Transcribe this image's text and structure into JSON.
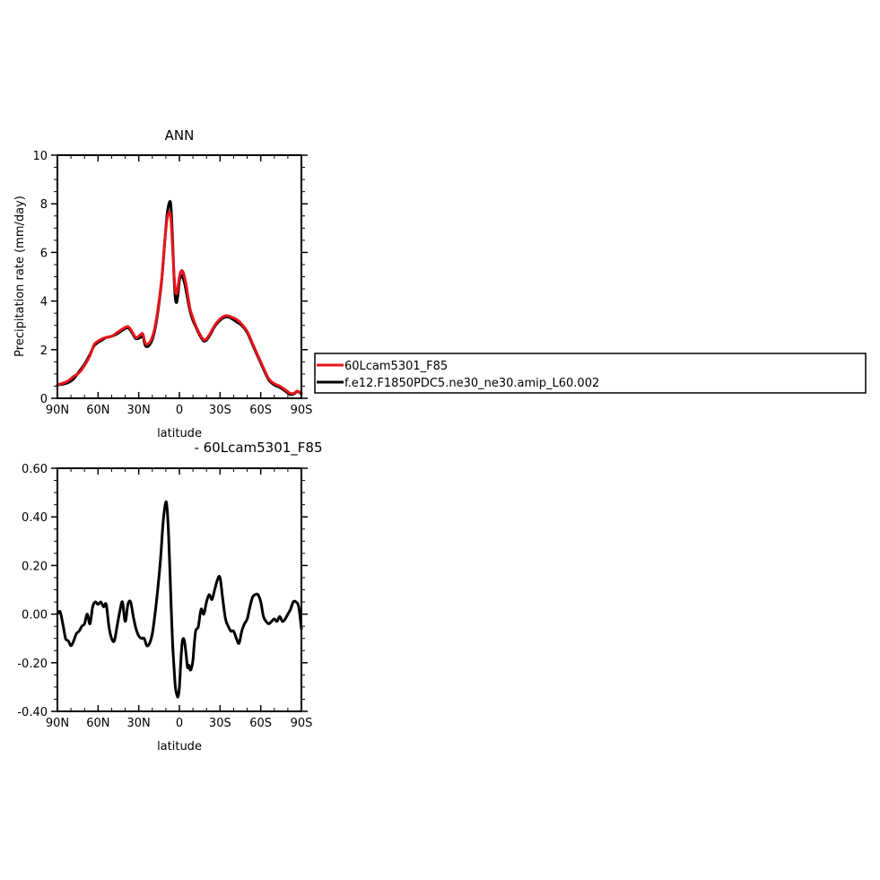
{
  "colors": {
    "model": "#e8141b",
    "control": "#000000",
    "axis": "#000000"
  },
  "legend": {
    "items": [
      {
        "label": "60Lcam5301_F85",
        "color": "#e8141b"
      },
      {
        "label": "f.e12.F1850PDC5.ne30_ne30.amip_L60.002",
        "color": "#000000"
      }
    ]
  },
  "chart_data": [
    {
      "type": "line",
      "title": "ANN",
      "xlabel": "latitude",
      "ylabel": "Precipitation rate (mm/day)",
      "xlim": [
        90,
        -90
      ],
      "ylim": [
        0,
        10
      ],
      "xticks": [
        90,
        60,
        30,
        0,
        -30,
        -60,
        -90
      ],
      "xtick_labels": [
        "90N",
        "60N",
        "30N",
        "0",
        "30S",
        "60S",
        "90S"
      ],
      "yticks": [
        0,
        2,
        4,
        6,
        8,
        10
      ],
      "ytick_labels": [
        "0",
        "2",
        "4",
        "6",
        "8",
        "10"
      ],
      "series": [
        {
          "name": "f.e12.F1850PDC5.ne30_ne30.amip_L60.002",
          "color": "#000000",
          "x": [
            90,
            86,
            82,
            78,
            74,
            70,
            66,
            63,
            60,
            57,
            54,
            50,
            46,
            42,
            38,
            35,
            32,
            29,
            27,
            25,
            22,
            19,
            16,
            13,
            11,
            9,
            7,
            6,
            5,
            4,
            3,
            2,
            1,
            0,
            -1,
            -2,
            -3,
            -4,
            -5,
            -6,
            -7,
            -8,
            -10,
            -12,
            -14,
            -16,
            -18,
            -20,
            -22,
            -24,
            -26,
            -29,
            -32,
            -35,
            -38,
            -42,
            -46,
            -50,
            -54,
            -58,
            -62,
            -66,
            -70,
            -74,
            -78,
            -82,
            -85,
            -87,
            -90
          ],
          "y": [
            0.55,
            0.58,
            0.65,
            0.8,
            1.1,
            1.4,
            1.8,
            2.15,
            2.3,
            2.4,
            2.5,
            2.55,
            2.65,
            2.8,
            2.9,
            2.7,
            2.45,
            2.5,
            2.55,
            2.15,
            2.2,
            2.6,
            3.5,
            4.9,
            6.3,
            7.6,
            8.1,
            7.7,
            6.5,
            5.0,
            4.1,
            3.95,
            4.3,
            4.85,
            5.0,
            5.05,
            4.9,
            4.7,
            4.4,
            4.1,
            3.8,
            3.55,
            3.2,
            2.95,
            2.7,
            2.5,
            2.35,
            2.4,
            2.55,
            2.75,
            2.95,
            3.15,
            3.3,
            3.35,
            3.3,
            3.15,
            3.0,
            2.7,
            2.2,
            1.7,
            1.2,
            0.75,
            0.55,
            0.45,
            0.3,
            0.15,
            0.2,
            0.28,
            0.18
          ]
        },
        {
          "name": "60Lcam5301_F85",
          "color": "#e8141b",
          "x": [
            90,
            86,
            82,
            78,
            74,
            70,
            66,
            63,
            60,
            57,
            54,
            50,
            46,
            42,
            38,
            35,
            32,
            29,
            27,
            25,
            22,
            19,
            16,
            13,
            11,
            9,
            7,
            6,
            5,
            4,
            3,
            2,
            1,
            0,
            -1,
            -2,
            -3,
            -4,
            -5,
            -6,
            -7,
            -8,
            -10,
            -12,
            -14,
            -16,
            -18,
            -20,
            -22,
            -24,
            -26,
            -29,
            -32,
            -35,
            -38,
            -42,
            -46,
            -50,
            -54,
            -58,
            -62,
            -66,
            -70,
            -74,
            -78,
            -82,
            -85,
            -87,
            -90
          ],
          "y": [
            0.56,
            0.62,
            0.72,
            0.9,
            1.05,
            1.35,
            1.75,
            2.2,
            2.35,
            2.45,
            2.5,
            2.55,
            2.7,
            2.85,
            2.95,
            2.75,
            2.5,
            2.6,
            2.65,
            2.25,
            2.3,
            2.7,
            3.6,
            4.95,
            6.35,
            7.4,
            7.65,
            7.2,
            6.2,
            5.1,
            4.45,
            4.3,
            4.6,
            5.0,
            5.2,
            5.25,
            5.15,
            4.95,
            4.65,
            4.3,
            3.95,
            3.65,
            3.3,
            3.0,
            2.75,
            2.55,
            2.4,
            2.45,
            2.6,
            2.8,
            3.0,
            3.2,
            3.35,
            3.4,
            3.35,
            3.25,
            3.05,
            2.75,
            2.25,
            1.75,
            1.25,
            0.8,
            0.6,
            0.5,
            0.35,
            0.2,
            0.22,
            0.3,
            0.2
          ]
        }
      ]
    },
    {
      "type": "line",
      "title": "- 60Lcam5301_F85",
      "xlabel": "latitude",
      "ylabel": "",
      "xlim": [
        90,
        -90
      ],
      "ylim": [
        -0.4,
        0.6
      ],
      "xticks": [
        90,
        60,
        30,
        0,
        -30,
        -60,
        -90
      ],
      "xtick_labels": [
        "90N",
        "60N",
        "30N",
        "0",
        "30S",
        "60S",
        "90S"
      ],
      "yticks": [
        -0.4,
        -0.2,
        0,
        0.2,
        0.4,
        0.6
      ],
      "ytick_labels": [
        "-0.40",
        "-0.20",
        "0.00",
        "0.20",
        "0.40",
        "0.60"
      ],
      "series": [
        {
          "name": "",
          "color": "#000000",
          "x": [
            90,
            88,
            86,
            84,
            82,
            80,
            78,
            76,
            74,
            72,
            70,
            68,
            66,
            64,
            62,
            60,
            58,
            56,
            54,
            52,
            50,
            48,
            46,
            44,
            42,
            40,
            38,
            36,
            34,
            32,
            30,
            28,
            26,
            24,
            22,
            20,
            18,
            16,
            14,
            12,
            10,
            9,
            8,
            7,
            6,
            5,
            4,
            3,
            2,
            1,
            0,
            -1,
            -2,
            -3,
            -4,
            -5,
            -6,
            -7,
            -8,
            -9,
            -10,
            -11,
            -12,
            -13,
            -14,
            -16,
            -18,
            -20,
            -22,
            -24,
            -26,
            -28,
            -30,
            -32,
            -34,
            -36,
            -38,
            -40,
            -42,
            -44,
            -46,
            -48,
            -50,
            -52,
            -54,
            -56,
            -58,
            -60,
            -62,
            -64,
            -66,
            -68,
            -70,
            -72,
            -74,
            -76,
            -78,
            -80,
            -82,
            -84,
            -86,
            -88,
            -90
          ],
          "y": [
            0.0,
            0.01,
            -0.04,
            -0.1,
            -0.11,
            -0.13,
            -0.11,
            -0.08,
            -0.07,
            -0.05,
            -0.04,
            0.0,
            -0.04,
            0.03,
            0.05,
            0.04,
            0.05,
            0.03,
            0.04,
            -0.05,
            -0.1,
            -0.11,
            -0.05,
            0.01,
            0.05,
            -0.03,
            0.04,
            0.05,
            -0.01,
            -0.06,
            -0.09,
            -0.1,
            -0.1,
            -0.13,
            -0.12,
            -0.08,
            0.0,
            0.1,
            0.22,
            0.38,
            0.46,
            0.43,
            0.33,
            0.18,
            0.02,
            -0.12,
            -0.22,
            -0.3,
            -0.33,
            -0.34,
            -0.3,
            -0.2,
            -0.12,
            -0.1,
            -0.12,
            -0.17,
            -0.22,
            -0.21,
            -0.23,
            -0.22,
            -0.19,
            -0.12,
            -0.07,
            -0.06,
            -0.05,
            0.02,
            0.0,
            0.05,
            0.08,
            0.06,
            0.1,
            0.14,
            0.15,
            0.06,
            -0.02,
            -0.05,
            -0.07,
            -0.07,
            -0.1,
            -0.12,
            -0.07,
            -0.04,
            -0.02,
            0.03,
            0.07,
            0.08,
            0.08,
            0.05,
            -0.01,
            -0.03,
            -0.04,
            -0.03,
            -0.02,
            -0.03,
            -0.01,
            -0.03,
            -0.02,
            0.0,
            0.02,
            0.05,
            0.05,
            0.03,
            -0.06
          ]
        }
      ]
    }
  ]
}
